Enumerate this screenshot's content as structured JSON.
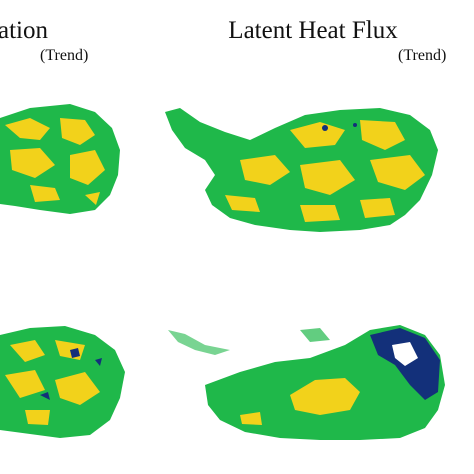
{
  "panels": [
    {
      "title": "ation",
      "subtitle": "(Trend)"
    },
    {
      "title": "Latent Heat Flux",
      "subtitle": "(Trend)"
    }
  ]
}
